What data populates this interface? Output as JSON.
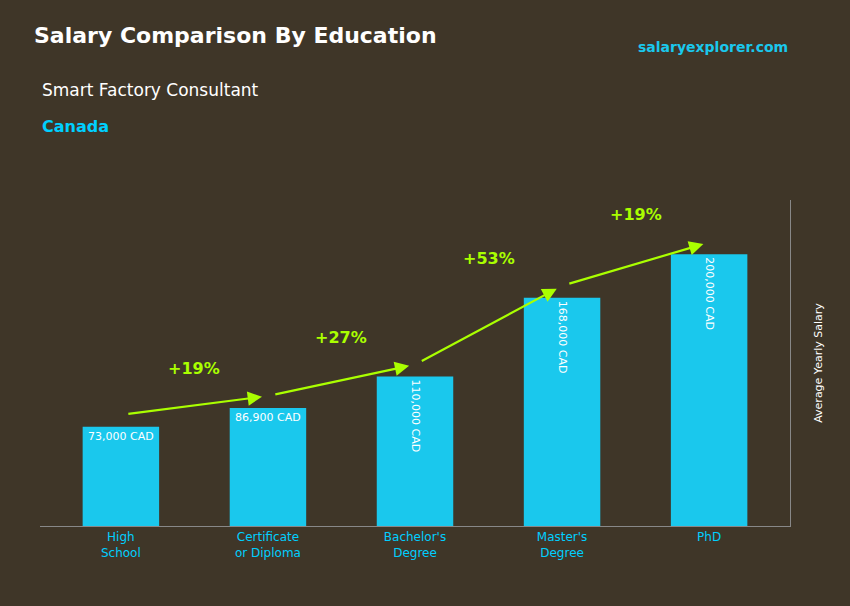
{
  "chart_data": {
    "type": "bar",
    "title": "Salary Comparison By Education",
    "subtitle": [
      "Smart Factory Consultant",
      "Canada"
    ],
    "ylabel": "Average Yearly Salary",
    "watermark": "salaryexplorer.com",
    "categories": [
      "High\nSchool",
      "Certificate\nor Diploma",
      "Bachelor's\nDegree",
      "Master's\nDegree",
      "PhD"
    ],
    "values": [
      73000,
      86900,
      110000,
      168000,
      200000
    ],
    "value_labels": [
      "73,000 CAD",
      "86,900 CAD",
      "110,000 CAD",
      "168,000 CAD",
      "200,000 CAD"
    ],
    "data_labels": true,
    "annotations": [
      "+19%",
      "+27%",
      "+53%",
      "+19%"
    ],
    "color": "#1AC8ED",
    "ylim": [
      0,
      240000
    ],
    "grid": false,
    "tick_labels": "x"
  }
}
